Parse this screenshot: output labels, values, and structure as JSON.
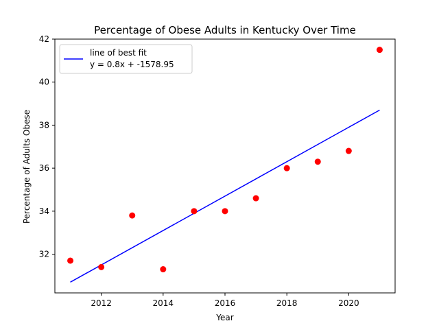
{
  "chart_data": {
    "type": "scatter",
    "title": "Percentage of Obese Adults in Kentucky Over Time",
    "xlabel": "Year",
    "ylabel": "Percentage of Adults Obese",
    "xlim": [
      2010.5,
      2021.5
    ],
    "ylim": [
      30.2,
      42.0
    ],
    "xticks": [
      2012,
      2014,
      2016,
      2018,
      2020
    ],
    "yticks": [
      32,
      34,
      36,
      38,
      40,
      42
    ],
    "grid": false,
    "legend_position": "top-left",
    "series": [
      {
        "name": "",
        "kind": "scatter",
        "color": "#ff0000",
        "x": [
          2011,
          2012,
          2013,
          2014,
          2015,
          2016,
          2017,
          2018,
          2019,
          2020,
          2021
        ],
        "y": [
          31.7,
          31.4,
          33.8,
          31.3,
          34.0,
          34.0,
          34.6,
          36.0,
          36.3,
          36.8,
          41.5
        ]
      },
      {
        "name": "line of best fit",
        "kind": "line",
        "color": "#0000ff",
        "x": [
          2011,
          2021
        ],
        "y": [
          30.7,
          38.7
        ]
      }
    ],
    "legend": {
      "label": "line of best fit",
      "equation": "y = 0.8x + -1578.95"
    }
  }
}
